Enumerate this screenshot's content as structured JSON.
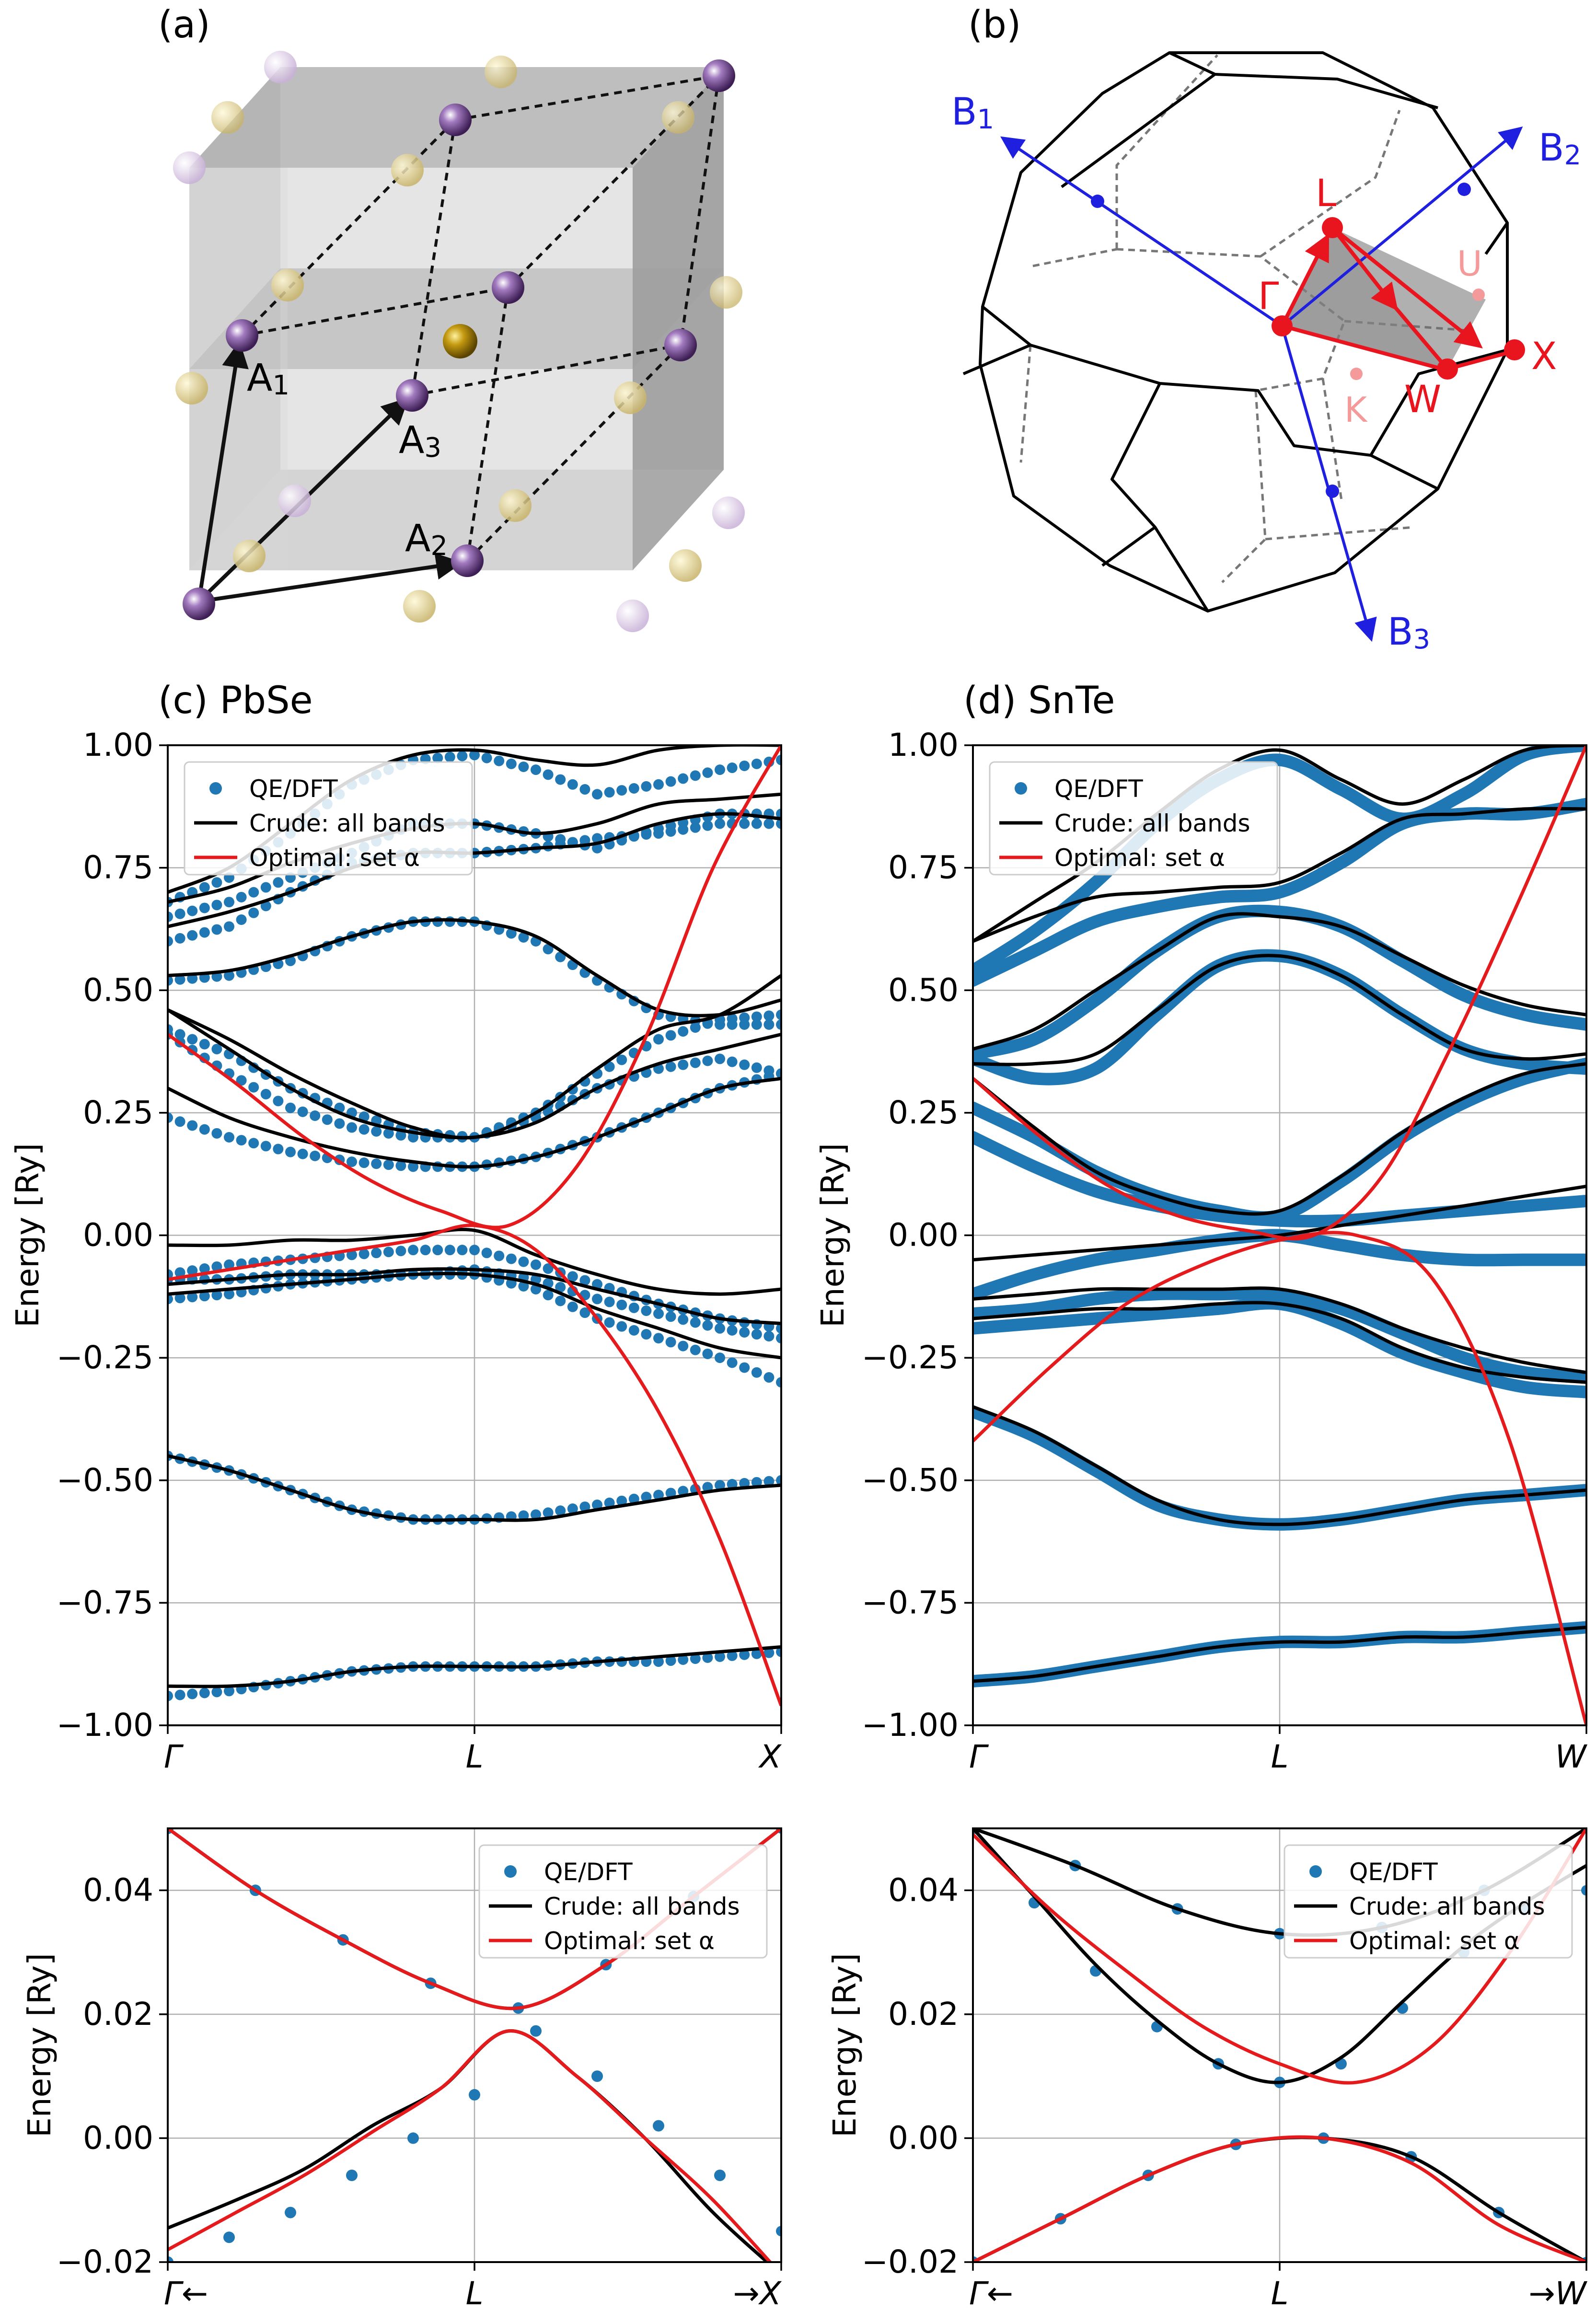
{
  "panel_labels": {
    "a": "(a)",
    "b": "(b)",
    "c": "(c) PbSe",
    "d": "(d) SnTe"
  },
  "crystal": {
    "vectors": [
      "A1",
      "A2",
      "A3"
    ]
  },
  "bz": {
    "reciprocal_vectors": [
      "B1",
      "B2",
      "B3"
    ],
    "points": {
      "gamma": "Γ",
      "L": "L",
      "X": "X",
      "W": "W",
      "K": "K",
      "U": "U"
    }
  },
  "colors": {
    "dft": "#1f77b4",
    "crude": "#000000",
    "optimal": "#e41a1c",
    "crystal_purple": "#7b4a9b",
    "crystal_gold": "#b8a04a",
    "bz_blue": "#1f1fe0",
    "bz_red": "#e8141e"
  },
  "legend": {
    "dft": "QE/DFT",
    "crude": "Crude: all bands",
    "optimal": "Optimal: set α"
  },
  "ylabel": "Energy [Ry]",
  "chart_data": [
    {
      "id": "c-top",
      "type": "line",
      "title": "(c) PbSe",
      "ylabel": "Energy [Ry]",
      "x_ticks": [
        "Γ",
        "L",
        "X"
      ],
      "ylim": [
        -1.0,
        1.0
      ],
      "y_ticks": [
        "−1.00",
        "−0.75",
        "−0.50",
        "−0.25",
        "0.00",
        "0.25",
        "0.50",
        "0.75",
        "1.00"
      ],
      "grid": true,
      "legend_position": "top-left",
      "series": [
        {
          "name": "QE/DFT",
          "style": "dots",
          "bands": [
            [
              -0.94,
              -0.93,
              -0.91,
              -0.89,
              -0.88,
              -0.88,
              -0.88,
              -0.87,
              -0.87,
              -0.86,
              -0.85
            ],
            [
              -0.45,
              -0.48,
              -0.52,
              -0.56,
              -0.58,
              -0.58,
              -0.57,
              -0.55,
              -0.53,
              -0.51,
              -0.5
            ],
            [
              -0.13,
              -0.12,
              -0.1,
              -0.09,
              -0.08,
              -0.08,
              -0.11,
              -0.17,
              -0.21,
              -0.25,
              -0.3
            ],
            [
              -0.09,
              -0.09,
              -0.08,
              -0.08,
              -0.08,
              -0.07,
              -0.09,
              -0.13,
              -0.16,
              -0.19,
              -0.21
            ],
            [
              -0.08,
              -0.06,
              -0.05,
              -0.04,
              -0.03,
              -0.03,
              -0.06,
              -0.1,
              -0.14,
              -0.17,
              -0.19
            ],
            [
              0.24,
              0.2,
              0.17,
              0.15,
              0.14,
              0.14,
              0.16,
              0.2,
              0.25,
              0.3,
              0.33
            ],
            [
              0.41,
              0.33,
              0.26,
              0.22,
              0.2,
              0.2,
              0.24,
              0.3,
              0.34,
              0.36,
              0.33
            ],
            [
              0.42,
              0.37,
              0.3,
              0.25,
              0.21,
              0.2,
              0.25,
              0.33,
              0.4,
              0.44,
              0.45
            ],
            [
              0.52,
              0.53,
              0.56,
              0.61,
              0.64,
              0.64,
              0.6,
              0.52,
              0.45,
              0.43,
              0.43
            ],
            [
              0.6,
              0.63,
              0.7,
              0.76,
              0.78,
              0.78,
              0.79,
              0.81,
              0.82,
              0.84,
              0.84
            ],
            [
              0.65,
              0.68,
              0.73,
              0.78,
              0.84,
              0.84,
              0.82,
              0.79,
              0.83,
              0.86,
              0.86
            ],
            [
              0.68,
              0.73,
              0.82,
              0.92,
              0.97,
              0.98,
              0.95,
              0.9,
              0.92,
              0.95,
              0.97
            ]
          ]
        },
        {
          "name": "Crude: all bands",
          "style": "line",
          "bands": [
            [
              -0.92,
              -0.92,
              -0.91,
              -0.89,
              -0.88,
              -0.88,
              -0.88,
              -0.87,
              -0.86,
              -0.85,
              -0.84
            ],
            [
              -0.45,
              -0.48,
              -0.52,
              -0.56,
              -0.58,
              -0.58,
              -0.58,
              -0.56,
              -0.54,
              -0.52,
              -0.51
            ],
            [
              -0.12,
              -0.11,
              -0.1,
              -0.09,
              -0.08,
              -0.08,
              -0.1,
              -0.15,
              -0.19,
              -0.23,
              -0.25
            ],
            [
              -0.1,
              -0.09,
              -0.08,
              -0.08,
              -0.07,
              -0.07,
              -0.08,
              -0.11,
              -0.14,
              -0.17,
              -0.18
            ],
            [
              -0.02,
              -0.02,
              -0.01,
              -0.01,
              0,
              0.01,
              -0.04,
              -0.08,
              -0.11,
              -0.12,
              -0.11
            ],
            [
              0.3,
              0.24,
              0.2,
              0.17,
              0.15,
              0.14,
              0.16,
              0.2,
              0.25,
              0.3,
              0.32
            ],
            [
              0.46,
              0.38,
              0.3,
              0.24,
              0.21,
              0.2,
              0.23,
              0.3,
              0.35,
              0.38,
              0.41
            ],
            [
              0.46,
              0.4,
              0.33,
              0.27,
              0.22,
              0.2,
              0.25,
              0.34,
              0.42,
              0.45,
              0.53
            ],
            [
              0.53,
              0.54,
              0.57,
              0.61,
              0.64,
              0.64,
              0.61,
              0.53,
              0.46,
              0.45,
              0.48
            ],
            [
              0.63,
              0.66,
              0.7,
              0.75,
              0.78,
              0.78,
              0.79,
              0.8,
              0.84,
              0.86,
              0.85
            ],
            [
              0.68,
              0.71,
              0.76,
              0.8,
              0.83,
              0.84,
              0.82,
              0.84,
              0.88,
              0.89,
              0.9
            ],
            [
              0.7,
              0.75,
              0.84,
              0.93,
              0.98,
              0.99,
              0.97,
              0.96,
              0.99,
              1.0,
              1.0
            ]
          ]
        },
        {
          "name": "Optimal: set α",
          "style": "line",
          "bands": [
            [
              -0.09,
              -0.07,
              -0.05,
              -0.03,
              -0.01,
              0.02,
              -0.03,
              -0.17,
              -0.36,
              -0.62,
              -0.96
            ],
            [
              0.41,
              0.31,
              0.2,
              0.11,
              0.05,
              0.02,
              0.14,
              0.4,
              0.75,
              1.0
            ]
          ]
        }
      ]
    },
    {
      "id": "d-top",
      "type": "line",
      "title": "(d) SnTe",
      "ylabel": "Energy [Ry]",
      "x_ticks": [
        "Γ",
        "L",
        "W"
      ],
      "ylim": [
        -1.0,
        1.0
      ],
      "y_ticks": [
        "−1.00",
        "−0.75",
        "−0.50",
        "−0.25",
        "0.00",
        "0.25",
        "0.50",
        "0.75",
        "1.00"
      ],
      "grid": true,
      "legend_position": "top-left",
      "series": [
        {
          "name": "QE/DFT",
          "style": "thick",
          "bands": [
            [
              -0.91,
              -0.9,
              -0.88,
              -0.86,
              -0.84,
              -0.83,
              -0.83,
              -0.82,
              -0.82,
              -0.81,
              -0.8
            ],
            [
              -0.36,
              -0.41,
              -0.48,
              -0.55,
              -0.58,
              -0.59,
              -0.58,
              -0.56,
              -0.54,
              -0.53,
              -0.52
            ],
            [
              -0.19,
              -0.18,
              -0.17,
              -0.16,
              -0.15,
              -0.14,
              -0.18,
              -0.24,
              -0.28,
              -0.31,
              -0.32
            ],
            [
              -0.16,
              -0.15,
              -0.13,
              -0.12,
              -0.12,
              -0.12,
              -0.15,
              -0.2,
              -0.25,
              -0.28,
              -0.29
            ],
            [
              -0.12,
              -0.08,
              -0.05,
              -0.03,
              -0.01,
              0,
              -0.02,
              -0.04,
              -0.05,
              -0.05,
              -0.05
            ],
            [
              0.2,
              0.14,
              0.09,
              0.06,
              0.04,
              0.03,
              0.03,
              0.04,
              0.05,
              0.06,
              0.07
            ],
            [
              0.26,
              0.2,
              0.13,
              0.08,
              0.05,
              0.04,
              0.11,
              0.2,
              0.27,
              0.32,
              0.35
            ],
            [
              0.36,
              0.32,
              0.34,
              0.45,
              0.55,
              0.57,
              0.53,
              0.45,
              0.38,
              0.35,
              0.34
            ],
            [
              0.37,
              0.4,
              0.48,
              0.58,
              0.65,
              0.66,
              0.63,
              0.56,
              0.49,
              0.45,
              0.43
            ],
            [
              0.52,
              0.58,
              0.64,
              0.67,
              0.69,
              0.7,
              0.76,
              0.84,
              0.86,
              0.86,
              0.88
            ],
            [
              0.54,
              0.62,
              0.72,
              0.84,
              0.93,
              0.97,
              0.91,
              0.85,
              0.9,
              0.98,
              1.0
            ]
          ]
        },
        {
          "name": "Crude: all bands",
          "style": "line",
          "bands": [
            [
              -0.91,
              -0.9,
              -0.88,
              -0.86,
              -0.84,
              -0.83,
              -0.83,
              -0.82,
              -0.82,
              -0.81,
              -0.8
            ],
            [
              -0.35,
              -0.4,
              -0.47,
              -0.54,
              -0.58,
              -0.59,
              -0.58,
              -0.56,
              -0.54,
              -0.53,
              -0.52
            ],
            [
              -0.17,
              -0.16,
              -0.15,
              -0.15,
              -0.14,
              -0.14,
              -0.17,
              -0.23,
              -0.27,
              -0.29,
              -0.3
            ],
            [
              -0.13,
              -0.12,
              -0.11,
              -0.11,
              -0.11,
              -0.11,
              -0.14,
              -0.19,
              -0.23,
              -0.26,
              -0.28
            ],
            [
              -0.05,
              -0.04,
              -0.03,
              -0.02,
              -0.01,
              0,
              0.02,
              0.04,
              0.06,
              0.08,
              0.1
            ],
            [
              0.32,
              0.22,
              0.13,
              0.08,
              0.05,
              0.05,
              0.12,
              0.21,
              0.28,
              0.33,
              0.35
            ],
            [
              0.35,
              0.35,
              0.37,
              0.46,
              0.55,
              0.57,
              0.53,
              0.45,
              0.38,
              0.36,
              0.37
            ],
            [
              0.38,
              0.42,
              0.5,
              0.58,
              0.65,
              0.65,
              0.63,
              0.57,
              0.51,
              0.47,
              0.45
            ],
            [
              0.6,
              0.65,
              0.69,
              0.7,
              0.71,
              0.72,
              0.78,
              0.85,
              0.86,
              0.87,
              0.87
            ],
            [
              0.6,
              0.68,
              0.76,
              0.86,
              0.95,
              0.99,
              0.93,
              0.88,
              0.93,
              0.99,
              1.0
            ]
          ]
        },
        {
          "name": "Optimal: set α",
          "style": "line",
          "bands": [
            [
              -0.42,
              -0.27,
              -0.14,
              -0.06,
              -0.01,
              0.0,
              -0.09,
              -0.42,
              -1.0
            ],
            [
              0.32,
              0.2,
              0.1,
              0.04,
              0.01,
              0.0,
              0.12,
              0.38,
              0.68,
              1.0
            ]
          ]
        }
      ]
    },
    {
      "id": "c-bottom",
      "type": "line",
      "ylabel": "Energy [Ry]",
      "x_ticks": [
        "Γ←",
        "L",
        "→X"
      ],
      "ylim": [
        -0.02,
        0.05
      ],
      "y_ticks": [
        "−0.02",
        "0.00",
        "0.02",
        "0.04"
      ],
      "grid": true,
      "legend_position": "top-right",
      "series": [
        {
          "name": "QE/DFT",
          "style": "dots",
          "bands": [
            [
              -0.02,
              -0.016,
              -0.012,
              -0.006,
              0.0,
              0.007,
              0.0173,
              0.01,
              0.002,
              -0.006,
              -0.015
            ],
            [
              0.05,
              0.04,
              0.032,
              0.025,
              0.021,
              0.028,
              0.039,
              0.05
            ]
          ]
        },
        {
          "name": "Crude: all bands",
          "style": "line",
          "bands": [
            [
              -0.0145,
              -0.01,
              -0.005,
              0.002,
              0.008,
              0.0173,
              0.01,
              0.0,
              -0.012,
              -0.022
            ],
            [
              0.05,
              0.04,
              0.032,
              0.025,
              0.021,
              0.028,
              0.039,
              0.05
            ]
          ]
        },
        {
          "name": "Optimal: set α",
          "style": "line",
          "bands": [
            [
              -0.018,
              -0.012,
              -0.006,
              0.001,
              0.008,
              0.0173,
              0.01,
              0.0,
              -0.01,
              -0.022
            ],
            [
              0.05,
              0.04,
              0.032,
              0.025,
              0.021,
              0.028,
              0.039,
              0.05
            ]
          ]
        }
      ]
    },
    {
      "id": "d-bottom",
      "type": "line",
      "ylabel": "Energy [Ry]",
      "x_ticks": [
        "Γ←",
        "L",
        "→W"
      ],
      "ylim": [
        -0.02,
        0.05
      ],
      "y_ticks": [
        "−0.02",
        "0.00",
        "0.02",
        "0.04"
      ],
      "grid": true,
      "legend_position": "top-right",
      "series": [
        {
          "name": "QE/DFT",
          "style": "dots",
          "bands": [
            [
              0.05,
              0.038,
              0.027,
              0.018,
              0.012,
              0.009,
              0.012,
              0.021,
              0.03,
              0.037,
              0.04
            ],
            [
              -0.02,
              -0.013,
              -0.006,
              -0.001,
              0.0,
              -0.003,
              -0.012,
              -0.02
            ],
            [
              0.05,
              0.044,
              0.037,
              0.033,
              0.034,
              0.04,
              0.05
            ]
          ]
        },
        {
          "name": "Crude: all bands",
          "style": "line",
          "bands": [
            [
              0.05,
              0.039,
              0.028,
              0.019,
              0.012,
              0.009,
              0.013,
              0.022,
              0.031,
              0.038,
              0.044
            ],
            [
              -0.02,
              -0.013,
              -0.006,
              -0.001,
              0.0,
              -0.003,
              -0.012,
              -0.02
            ],
            [
              0.05,
              0.044,
              0.037,
              0.033,
              0.034,
              0.04,
              0.05
            ]
          ]
        },
        {
          "name": "Optimal: set α",
          "style": "line",
          "bands": [
            [
              0.049,
              0.037,
              0.027,
              0.018,
              0.012,
              0.009,
              0.015,
              0.03,
              0.05
            ],
            [
              -0.02,
              -0.013,
              -0.006,
              -0.001,
              0.0,
              -0.004,
              -0.014,
              -0.02
            ]
          ]
        }
      ]
    }
  ]
}
